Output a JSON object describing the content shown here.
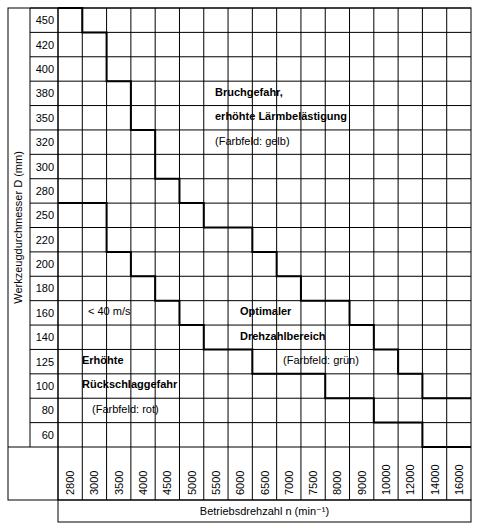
{
  "chart_data": {
    "type": "step",
    "x_label": "Betriebsdrehzahl n (min⁻¹)",
    "y_label": "Werkzeugdurchmesser D (mm)",
    "categories": [
      2800,
      3000,
      3500,
      4000,
      4500,
      5000,
      5500,
      6000,
      6500,
      7000,
      7500,
      8000,
      9000,
      10000,
      12000,
      14000,
      16000
    ],
    "y_categories": [
      60,
      80,
      100,
      125,
      140,
      160,
      180,
      200,
      220,
      250,
      280,
      300,
      320,
      350,
      380,
      400,
      420,
      450
    ],
    "series": [
      {
        "color": "#000000",
        "line_style": "solid",
        "values": [
          450,
          420,
          380,
          320,
          280,
          250,
          220,
          220,
          200,
          180,
          160,
          160,
          140,
          125,
          100,
          80,
          80
        ]
      },
      {
        "color": "#000000",
        "line_style": "solid",
        "values": [
          280,
          280,
          220,
          200,
          180,
          160,
          140,
          140,
          125,
          125,
          125,
          100,
          100,
          80,
          80,
          60,
          60
        ]
      }
    ],
    "annotations": [
      "Bruchgefahr,",
      "erhöhte Lärmbelästigung",
      "(Farbfeld: gelb)",
      "< 40 m/s",
      "Optimaler",
      "Drehzahlbereich",
      "(Farbfeld: grün)",
      "Erhöhte",
      "Rückschlaggefahr",
      "(Farbfeld: rot)"
    ],
    "grid": true
  }
}
